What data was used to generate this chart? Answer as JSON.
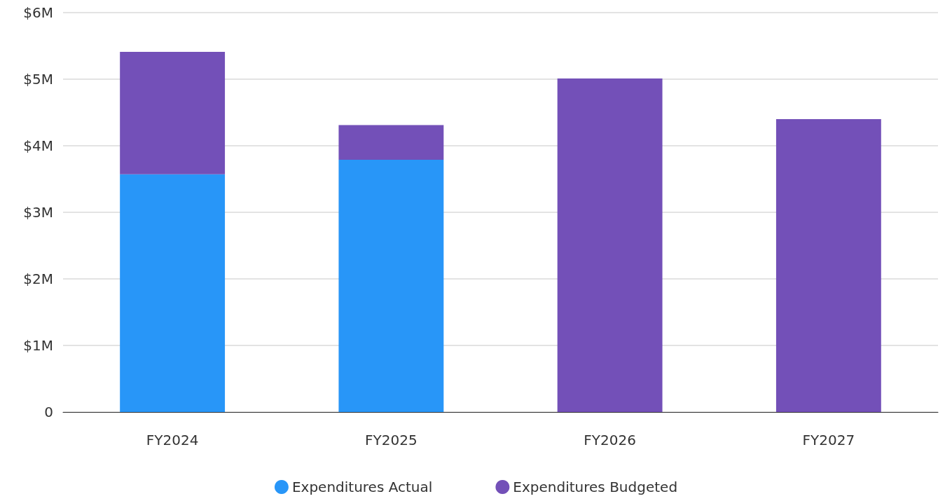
{
  "chart_data": {
    "type": "bar",
    "stacked": true,
    "categories": [
      "FY2024",
      "FY2025",
      "FY2026",
      "FY2027"
    ],
    "series": [
      {
        "name": "Expenditures Actual",
        "color": "#2896f8",
        "values": [
          3.57,
          3.79,
          null,
          null
        ]
      },
      {
        "name": "Expenditures Budgeted",
        "color": "#7350b8",
        "values": [
          1.84,
          0.52,
          5.01,
          4.4
        ]
      }
    ],
    "ylim": [
      0,
      6
    ],
    "yticks": [
      {
        "value": 0,
        "label": "0"
      },
      {
        "value": 1,
        "label": "$1M"
      },
      {
        "value": 2,
        "label": "$2M"
      },
      {
        "value": 3,
        "label": "$3M"
      },
      {
        "value": 4,
        "label": "$4M"
      },
      {
        "value": 5,
        "label": "$5M"
      },
      {
        "value": 6,
        "label": "$6M"
      }
    ],
    "grid": "y",
    "legend": "bottom",
    "marker": "circle"
  }
}
